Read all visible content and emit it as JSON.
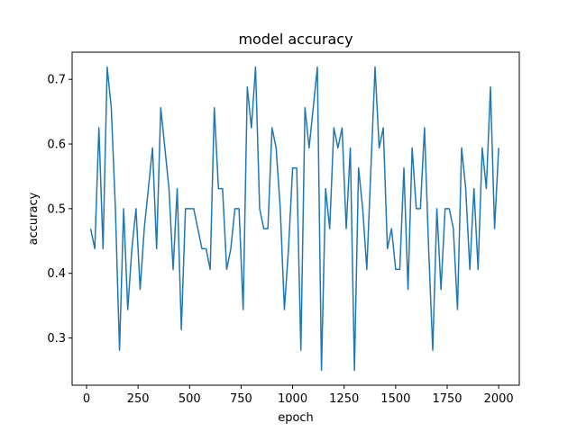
{
  "chart_data": {
    "type": "line",
    "title": "model accuracy",
    "xlabel": "epoch",
    "ylabel": "accuracy",
    "xlim": [
      -70,
      2100
    ],
    "ylim": [
      0.227,
      0.742
    ],
    "xticks": [
      0,
      250,
      500,
      750,
      1000,
      1250,
      1500,
      1750,
      2000
    ],
    "yticks": [
      0.3,
      0.4,
      0.5,
      0.6,
      0.7
    ],
    "ytick_labels": [
      "0.3",
      "0.4",
      "0.5",
      "0.6",
      "0.7"
    ],
    "grid": false,
    "series": [
      {
        "color": "#1f77b4",
        "x": [
          20,
          40,
          60,
          80,
          100,
          120,
          140,
          160,
          180,
          200,
          220,
          240,
          260,
          280,
          300,
          320,
          340,
          360,
          380,
          400,
          420,
          440,
          460,
          480,
          500,
          520,
          540,
          560,
          580,
          600,
          620,
          640,
          660,
          680,
          700,
          720,
          740,
          760,
          780,
          800,
          820,
          840,
          860,
          880,
          900,
          920,
          940,
          960,
          980,
          1000,
          1020,
          1040,
          1060,
          1080,
          1100,
          1120,
          1140,
          1160,
          1180,
          1200,
          1220,
          1240,
          1260,
          1280,
          1300,
          1320,
          1340,
          1360,
          1380,
          1400,
          1420,
          1440,
          1460,
          1480,
          1500,
          1520,
          1540,
          1560,
          1580,
          1600,
          1620,
          1640,
          1660,
          1680,
          1700,
          1720,
          1740,
          1760,
          1780,
          1800,
          1820,
          1840,
          1860,
          1880,
          1900,
          1920,
          1940,
          1960,
          1980,
          2000
        ],
        "y": [
          0.469,
          0.438,
          0.625,
          0.438,
          0.719,
          0.656,
          0.5,
          0.281,
          0.5,
          0.344,
          0.438,
          0.5,
          0.375,
          0.469,
          0.531,
          0.594,
          0.438,
          0.656,
          0.594,
          0.531,
          0.406,
          0.531,
          0.313,
          0.5,
          0.5,
          0.5,
          0.469,
          0.438,
          0.438,
          0.406,
          0.656,
          0.531,
          0.531,
          0.406,
          0.438,
          0.5,
          0.5,
          0.344,
          0.688,
          0.625,
          0.719,
          0.5,
          0.469,
          0.469,
          0.625,
          0.594,
          0.5,
          0.344,
          0.438,
          0.563,
          0.563,
          0.281,
          0.656,
          0.594,
          0.656,
          0.719,
          0.25,
          0.531,
          0.469,
          0.625,
          0.594,
          0.625,
          0.469,
          0.594,
          0.25,
          0.563,
          0.5,
          0.406,
          0.563,
          0.719,
          0.594,
          0.625,
          0.438,
          0.469,
          0.406,
          0.406,
          0.563,
          0.375,
          0.594,
          0.5,
          0.5,
          0.625,
          0.438,
          0.281,
          0.5,
          0.375,
          0.5,
          0.5,
          0.469,
          0.344,
          0.594,
          0.531,
          0.406,
          0.531,
          0.406,
          0.594,
          0.531,
          0.688,
          0.469,
          0.594
        ]
      }
    ]
  }
}
